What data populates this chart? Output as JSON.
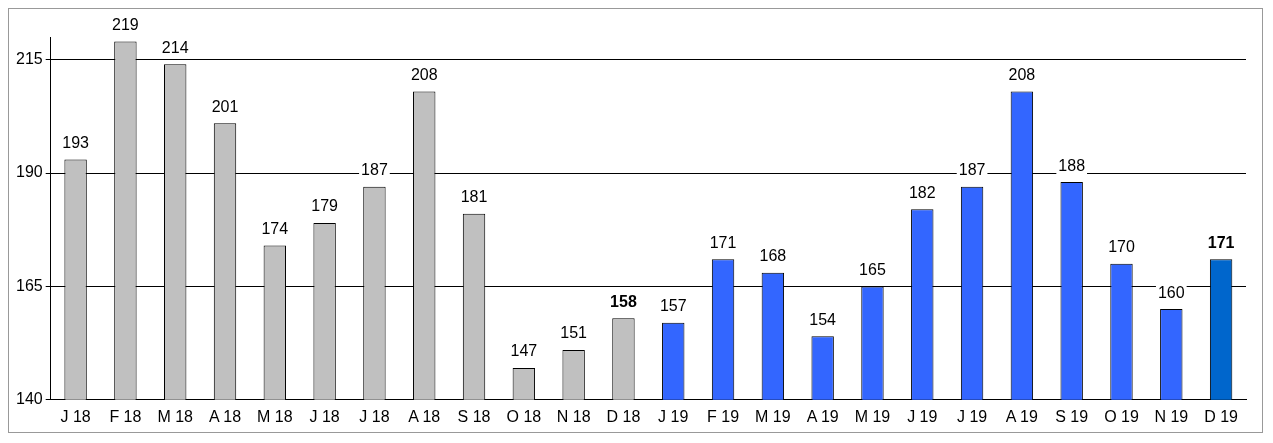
{
  "chart_data": {
    "type": "bar",
    "categories": [
      "J 18",
      "F 18",
      "M 18",
      "A 18",
      "M 18",
      "J 18",
      "J 18",
      "A 18",
      "S 18",
      "O 18",
      "N 18",
      "D 18",
      "J 19",
      "F 19",
      "M 19",
      "A 19",
      "M 19",
      "J 19",
      "J 19",
      "A 19",
      "S 19",
      "O 19",
      "N 19",
      "D 19"
    ],
    "values": [
      193,
      219,
      214,
      201,
      174,
      179,
      187,
      208,
      181,
      147,
      151,
      158,
      157,
      171,
      168,
      154,
      165,
      182,
      187,
      208,
      188,
      170,
      160,
      171
    ],
    "colors": [
      "#c0c0c0",
      "#c0c0c0",
      "#c0c0c0",
      "#c0c0c0",
      "#c0c0c0",
      "#c0c0c0",
      "#c0c0c0",
      "#c0c0c0",
      "#c0c0c0",
      "#c0c0c0",
      "#c0c0c0",
      "#c0c0c0",
      "#3366ff",
      "#3366ff",
      "#3366ff",
      "#3366ff",
      "#3366ff",
      "#3366ff",
      "#3366ff",
      "#3366ff",
      "#3366ff",
      "#3366ff",
      "#3366ff",
      "#0066cc"
    ],
    "ylim": [
      140,
      220
    ],
    "yticks": [
      140,
      165,
      190,
      215
    ],
    "grid": "y",
    "data_labels": true,
    "legend": false
  }
}
